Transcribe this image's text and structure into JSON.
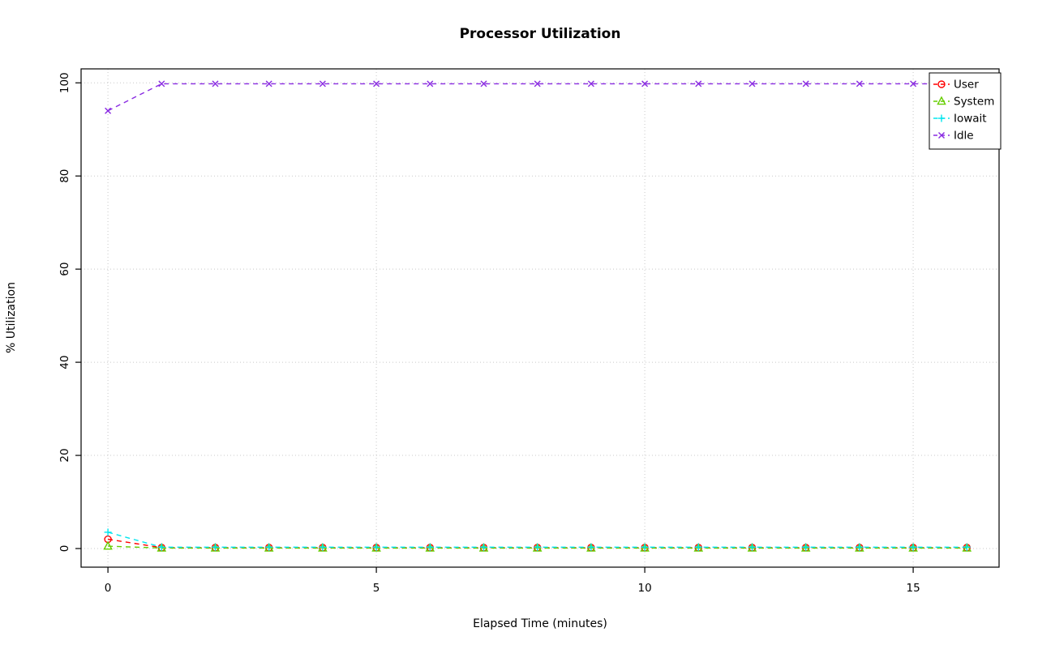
{
  "title": "Processor Utilization",
  "chart_data": {
    "type": "line",
    "title": "Processor Utilization",
    "xlabel": "Elapsed Time (minutes)",
    "ylabel": "% Utilization",
    "x": [
      0,
      1,
      2,
      3,
      4,
      5,
      6,
      7,
      8,
      9,
      10,
      11,
      12,
      13,
      14,
      15,
      16
    ],
    "series": [
      {
        "name": "User",
        "color": "#ff0000",
        "marker": "circle",
        "values": [
          2,
          0.2,
          0.2,
          0.2,
          0.2,
          0.2,
          0.2,
          0.2,
          0.2,
          0.2,
          0.2,
          0.2,
          0.2,
          0.2,
          0.2,
          0.2,
          0.2
        ]
      },
      {
        "name": "System",
        "color": "#66cd00",
        "marker": "triangle",
        "values": [
          0.5,
          0.1,
          0.1,
          0.1,
          0.1,
          0.1,
          0.1,
          0.1,
          0.1,
          0.1,
          0.1,
          0.1,
          0.1,
          0.1,
          0.1,
          0.1,
          0.1
        ]
      },
      {
        "name": "Iowait",
        "color": "#00e5ee",
        "marker": "plus",
        "values": [
          3.5,
          0.3,
          0.3,
          0.3,
          0.3,
          0.3,
          0.3,
          0.3,
          0.3,
          0.3,
          0.3,
          0.3,
          0.3,
          0.3,
          0.3,
          0.3,
          0.3
        ]
      },
      {
        "name": "Idle",
        "color": "#8a2be2",
        "marker": "x",
        "values": [
          94,
          99.8,
          99.8,
          99.8,
          99.8,
          99.8,
          99.8,
          99.8,
          99.8,
          99.8,
          99.8,
          99.8,
          99.8,
          99.8,
          99.8,
          99.8,
          99.8
        ]
      }
    ],
    "xticks": [
      0,
      5,
      10,
      15
    ],
    "yticks": [
      0,
      20,
      40,
      60,
      80,
      100
    ],
    "xlim": [
      -0.5,
      16.6
    ],
    "ylim": [
      -4,
      103
    ],
    "grid": true,
    "grid_style": "dotted",
    "line_style": "dashed",
    "legend_position": "top-right",
    "colors": {
      "axis": "#000000",
      "grid": "#c8c8c8",
      "background": "#ffffff"
    }
  }
}
